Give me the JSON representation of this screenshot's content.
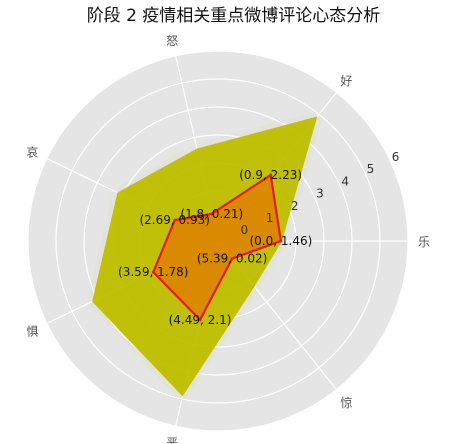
{
  "chart_data": {
    "type": "radar",
    "title": "阶段 2 疫情相关重点微博评论心态分析",
    "axes": [
      "乐",
      "好",
      "怒",
      "哀",
      "惧",
      "恶",
      "惊"
    ],
    "rlim": [
      0,
      6
    ],
    "r_ticks": [
      "0",
      "1",
      "2",
      "3",
      "4",
      "5",
      "6"
    ],
    "grid": true,
    "series": [
      {
        "role": "envelope",
        "values": [
          1.5,
          4.9,
          2.6,
          3.2,
          4.2,
          4.9,
          1.3
        ],
        "color": "#bfbf00"
      },
      {
        "role": "mean",
        "values": [
          1.46,
          2.23,
          0.21,
          0.93,
          1.78,
          2.1,
          0.02
        ],
        "color": "#e8181c",
        "fill": "#d98a00"
      }
    ],
    "point_labels": [
      "(0.0, 1.46)",
      "(0.9, 2.23)",
      "(1.8, 0.21)",
      "(2.69, 0.93)",
      "(3.59, 1.78)",
      "(4.49, 2.1)",
      "(5.39, 0.02)"
    ]
  },
  "colors": {
    "background": "#e5e5e5",
    "grid": "#ffffff",
    "envelope": "#bfbf00",
    "mean_line": "#e8181c",
    "mean_fill": "#d98a00"
  }
}
